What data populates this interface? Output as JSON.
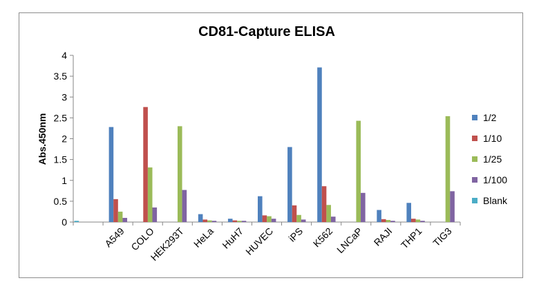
{
  "chart_data": {
    "type": "bar",
    "title": "CD81-Capture ELISA",
    "xlabel": "",
    "ylabel": "Abs.450nm",
    "ylim": [
      0,
      4
    ],
    "yticks": [
      "0",
      "0.5",
      "1",
      "1.5",
      "2",
      "2.5",
      "3",
      "3.5",
      "4"
    ],
    "grid": false,
    "legend_position": "right",
    "categories": [
      "",
      "A549",
      "COLO",
      "HEK293T",
      "HeLa",
      "HuH7",
      "HUVEC",
      "iPS",
      "K562",
      "LNCaP",
      "RAJI",
      "THP1",
      "TIG3"
    ],
    "series": [
      {
        "name": "1/2",
        "color": "#4f81bd",
        "values": [
          0,
          2.28,
          0,
          0,
          0.19,
          0.08,
          0.62,
          1.8,
          3.71,
          0,
          0.29,
          0.46,
          0
        ]
      },
      {
        "name": "1/10",
        "color": "#c0504d",
        "values": [
          0,
          0.55,
          2.76,
          0,
          0.06,
          0.04,
          0.16,
          0.4,
          0.86,
          0,
          0.07,
          0.08,
          0
        ]
      },
      {
        "name": "1/25",
        "color": "#9bbb59",
        "values": [
          0,
          0.25,
          1.31,
          2.3,
          0.04,
          0.03,
          0.14,
          0.17,
          0.41,
          2.43,
          0.05,
          0.06,
          2.54
        ]
      },
      {
        "name": "1/100",
        "color": "#8064a2",
        "values": [
          0,
          0.1,
          0.35,
          0.77,
          0.03,
          0.03,
          0.08,
          0.06,
          0.13,
          0.7,
          0.03,
          0.03,
          0.74
        ]
      },
      {
        "name": "Blank",
        "color": "#4bacc6",
        "values": [
          0.03,
          0,
          0,
          0,
          0,
          0,
          0,
          0,
          0,
          0,
          0,
          0,
          0
        ]
      }
    ]
  }
}
